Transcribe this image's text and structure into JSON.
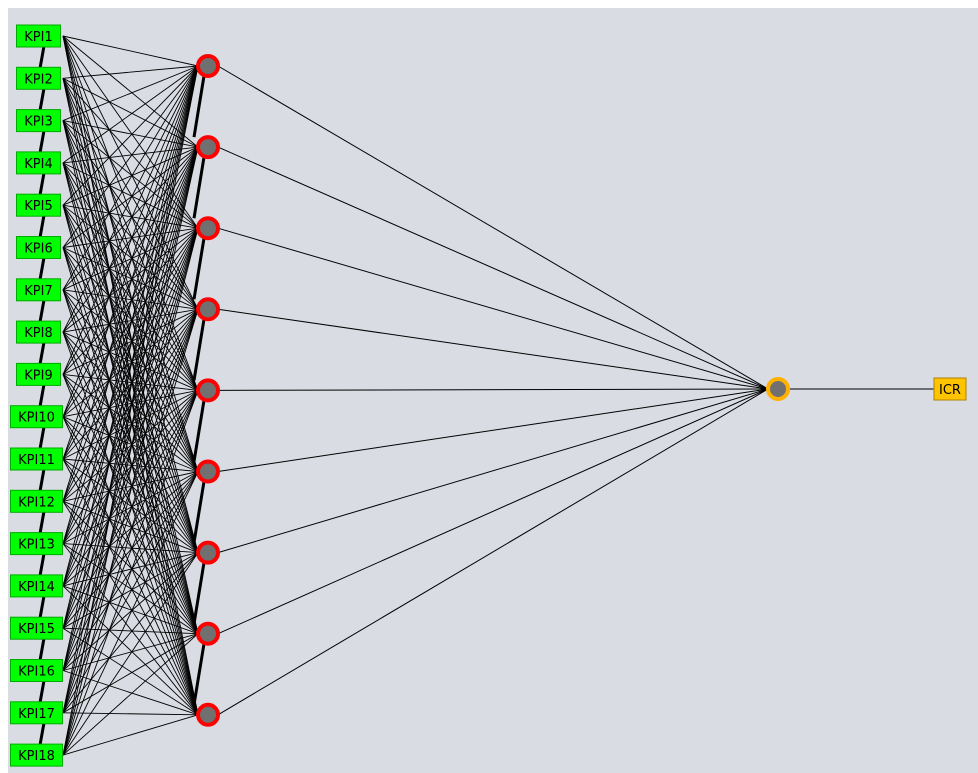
{
  "colors": {
    "background": "#d9dce3",
    "input_fill": "#00ff00",
    "input_border": "#00aa00",
    "hidden_ring": "#ff0000",
    "hidden_core": "#707070",
    "output_ring": "#ffb000",
    "output_core": "#707070",
    "target_fill": "#ffc400",
    "target_border": "#b08000",
    "edge": "#000000"
  },
  "network": {
    "inputs": [
      {
        "id": "KPI1",
        "label": "KPI1"
      },
      {
        "id": "KPI2",
        "label": "KPI2"
      },
      {
        "id": "KPI3",
        "label": "KPI3"
      },
      {
        "id": "KPI4",
        "label": "KPI4"
      },
      {
        "id": "KPI5",
        "label": "KPI5"
      },
      {
        "id": "KPI6",
        "label": "KPI6"
      },
      {
        "id": "KPI7",
        "label": "KPI7"
      },
      {
        "id": "KPI8",
        "label": "KPI8"
      },
      {
        "id": "KPI9",
        "label": "KPI9"
      },
      {
        "id": "KPI10",
        "label": "KPI10"
      },
      {
        "id": "KPI11",
        "label": "KPI11"
      },
      {
        "id": "KPI12",
        "label": "KPI12"
      },
      {
        "id": "KPI13",
        "label": "KPI13"
      },
      {
        "id": "KPI14",
        "label": "KPI14"
      },
      {
        "id": "KPI15",
        "label": "KPI15"
      },
      {
        "id": "KPI16",
        "label": "KPI16"
      },
      {
        "id": "KPI17",
        "label": "KPI17"
      },
      {
        "id": "KPI18",
        "label": "KPI18"
      }
    ],
    "hidden_count": 9,
    "output_count": 1,
    "target": {
      "id": "ICR",
      "label": "ICR"
    },
    "connectivity": "fully-connected"
  }
}
